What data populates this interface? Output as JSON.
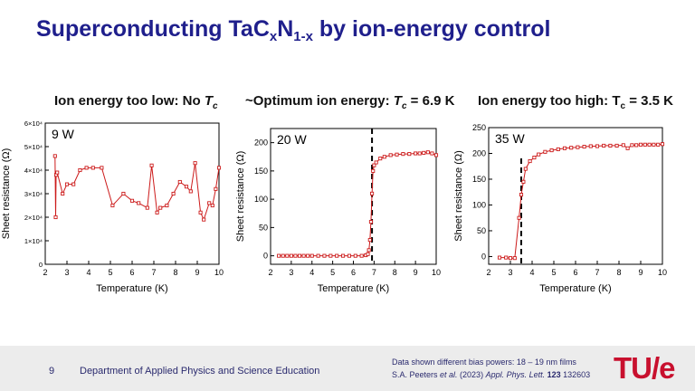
{
  "slide": {
    "title_pre": "Superconducting TaC",
    "title_sub1": "x",
    "title_mid": "N",
    "title_sub2": "1-x",
    "title_post": " by ion-energy control"
  },
  "panels": [
    {
      "title_a": "Ion energy too low: No ",
      "title_b": "T",
      "title_c": "c",
      "title_d": ""
    },
    {
      "title_a": "~Optimum ion energy: ",
      "title_b": "T",
      "title_c": "c",
      "title_d": " = 6.9 K"
    },
    {
      "title_a": "Ion energy too high: T",
      "title_b": "",
      "title_c": "c",
      "title_d": " = 3.5 K"
    }
  ],
  "footer": {
    "page": "9",
    "department": "Department of Applied Physics and Science Education",
    "ref_line1": "Data shown different bias powers: 18 – 19 nm films",
    "ref_line2_a": "S.A. Peeters ",
    "ref_line2_b": "et al.",
    "ref_line2_c": " (2023) ",
    "ref_line2_d": "Appl. Phys. Lett.",
    "ref_line2_e": " 123",
    "ref_line2_f": " 132603",
    "logo": "TU/e"
  },
  "colors": {
    "series": "#cc1a1a",
    "title": "#1f1f8c",
    "logo": "#c8102e"
  },
  "chart_data": [
    {
      "type": "line",
      "annotation": "9 W",
      "xlabel": "Temperature (K)",
      "ylabel": "Sheet resistance (Ω)",
      "xlim": [
        2,
        10
      ],
      "ylim": [
        0,
        60000
      ],
      "xticks": [
        2,
        3,
        4,
        5,
        6,
        7,
        8,
        9,
        10
      ],
      "yticks": [
        0,
        10000,
        20000,
        30000,
        40000,
        50000,
        60000
      ],
      "ytick_labels": [
        "0",
        "1×10⁴",
        "2×10⁴",
        "3×10⁴",
        "4×10⁴",
        "5×10⁴",
        "6×10⁴"
      ],
      "x": [
        2.45,
        2.48,
        2.5,
        2.55,
        2.8,
        3.0,
        3.3,
        3.6,
        3.9,
        4.2,
        4.6,
        5.1,
        5.6,
        6.0,
        6.3,
        6.7,
        6.9,
        7.15,
        7.3,
        7.6,
        7.9,
        8.2,
        8.5,
        8.7,
        8.9,
        9.15,
        9.3,
        9.55,
        9.7,
        9.85,
        10.0
      ],
      "y": [
        46000,
        20000,
        38000,
        39000,
        30000,
        34000,
        34000,
        40000,
        41000,
        41000,
        41000,
        25000,
        30000,
        27000,
        26000,
        24000,
        42000,
        22000,
        24000,
        25000,
        30000,
        35000,
        33000,
        31000,
        43000,
        22000,
        19000,
        26000,
        25000,
        32000,
        41000
      ]
    },
    {
      "type": "line",
      "annotation": "20 W",
      "xlabel": "Temperature (K)",
      "ylabel": "Sheet resistance (Ω)",
      "xlim": [
        2,
        10
      ],
      "ylim": [
        -15,
        225
      ],
      "xticks": [
        2,
        3,
        4,
        5,
        6,
        7,
        8,
        9,
        10
      ],
      "yticks": [
        0,
        50,
        100,
        150,
        200
      ],
      "ytick_labels": [
        "0",
        "50",
        "100",
        "150",
        "200"
      ],
      "tc_marker": 6.9,
      "x": [
        2.4,
        2.6,
        2.8,
        3.0,
        3.2,
        3.4,
        3.6,
        3.8,
        4.0,
        4.3,
        4.6,
        4.9,
        5.2,
        5.5,
        5.8,
        6.1,
        6.4,
        6.6,
        6.7,
        6.75,
        6.8,
        6.85,
        6.9,
        6.95,
        7.0,
        7.1,
        7.3,
        7.5,
        7.8,
        8.1,
        8.4,
        8.7,
        9.0,
        9.2,
        9.4,
        9.6,
        9.8,
        10.0
      ],
      "y": [
        0,
        0,
        0,
        0,
        0,
        0,
        0,
        0,
        0,
        0,
        0,
        0,
        0,
        0,
        0,
        0,
        0,
        1,
        3,
        10,
        28,
        60,
        110,
        150,
        160,
        165,
        172,
        175,
        178,
        179,
        180,
        180,
        181,
        181,
        182,
        183,
        181,
        178
      ]
    },
    {
      "type": "line",
      "annotation": "35 W",
      "xlabel": "Temperature (K)",
      "ylabel": "Sheet resistance (Ω)",
      "xlim": [
        2,
        10
      ],
      "ylim": [
        -15,
        250
      ],
      "xticks": [
        2,
        3,
        4,
        5,
        6,
        7,
        8,
        9,
        10
      ],
      "yticks": [
        0,
        50,
        100,
        150,
        200,
        250
      ],
      "ytick_labels": [
        "0",
        "50",
        "100",
        "150",
        "200",
        "250"
      ],
      "tc_marker": 3.5,
      "x": [
        2.5,
        2.8,
        3.0,
        3.2,
        3.4,
        3.5,
        3.6,
        3.7,
        3.9,
        4.1,
        4.3,
        4.6,
        4.9,
        5.2,
        5.5,
        5.8,
        6.1,
        6.4,
        6.7,
        7.0,
        7.3,
        7.6,
        7.9,
        8.2,
        8.4,
        8.6,
        8.8,
        9.0,
        9.2,
        9.4,
        9.6,
        9.8,
        10.0
      ],
      "y": [
        -2,
        -2,
        -3,
        -3,
        75,
        120,
        145,
        170,
        185,
        192,
        198,
        203,
        206,
        208,
        210,
        211,
        212,
        213,
        214,
        214,
        215,
        215,
        215,
        216,
        210,
        216,
        216,
        217,
        217,
        217,
        217,
        217,
        218
      ]
    }
  ]
}
